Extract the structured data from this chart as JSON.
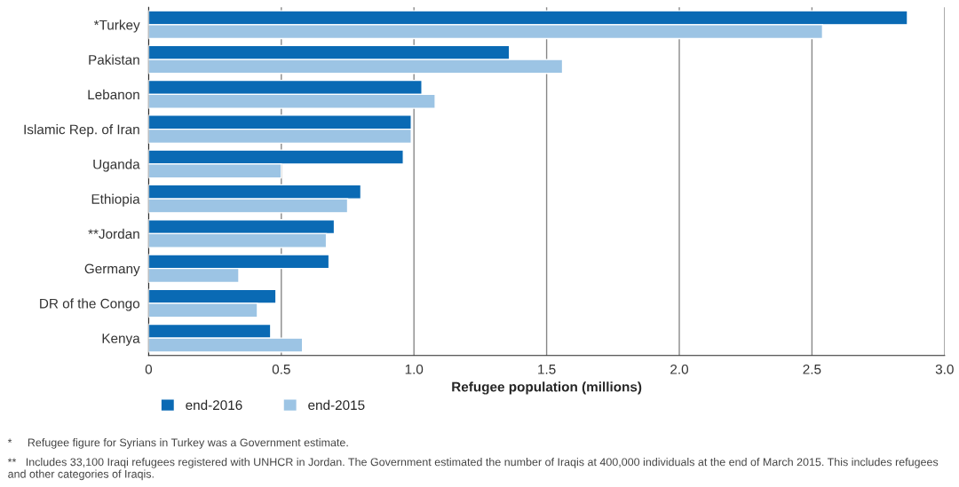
{
  "chart_data": {
    "type": "bar",
    "orientation": "horizontal",
    "categories": [
      "*Turkey",
      "Pakistan",
      "Lebanon",
      "Islamic Rep. of Iran",
      "Uganda",
      "Ethiopia",
      "**Jordan",
      "Germany",
      "DR of the Congo",
      "Kenya"
    ],
    "series": [
      {
        "name": "end-2016",
        "color": "#0a6ab4",
        "values": [
          2.86,
          1.36,
          1.03,
          0.99,
          0.96,
          0.8,
          0.7,
          0.68,
          0.48,
          0.46
        ]
      },
      {
        "name": "end-2015",
        "color": "#9cc4e4",
        "values": [
          2.54,
          1.56,
          1.08,
          0.99,
          0.5,
          0.75,
          0.67,
          0.34,
          0.41,
          0.58
        ]
      }
    ],
    "xlabel": "Refugee population (millions)",
    "xlim": [
      0,
      3.0
    ],
    "xticks": [
      0,
      0.5,
      {
        "value": 1.0,
        "label": "1.0"
      },
      1.5,
      {
        "value": 2.0,
        "label": "2.0"
      },
      2.5,
      {
        "value": 3.0,
        "label": "3.0"
      }
    ],
    "grid": "x",
    "legend": "bottom left",
    "annotations": [
      "*     Refugee figure for Syrians in Turkey was a Government estimate.",
      "**   Includes 33,100 Iraqi refugees registered with UNHCR in Jordan. The Government estimated the number of Iraqis at 400,000 individuals at the end of March 2015. This includes refugees and other categories of Iraqis."
    ]
  }
}
